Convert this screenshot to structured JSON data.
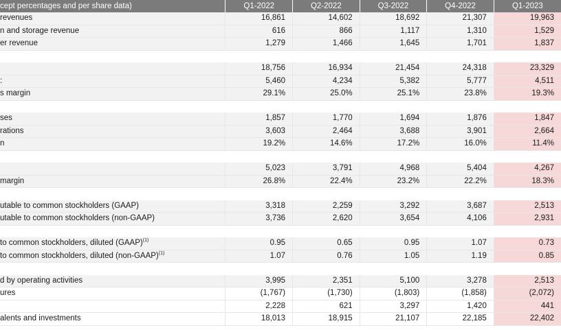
{
  "header": {
    "label": "cept percentages and per share data)",
    "columns": [
      "Q1-2022",
      "Q2-2022",
      "Q3-2022",
      "Q4-2022",
      "Q1-2023"
    ]
  },
  "rows": [
    {
      "type": "data",
      "shade": true,
      "label": " revenues",
      "values": [
        "16,861",
        "14,602",
        "18,692",
        "21,307",
        "19,963"
      ]
    },
    {
      "type": "data",
      "shade": true,
      "label": "n and storage revenue",
      "values": [
        "616",
        "866",
        "1,117",
        "1,310",
        "1,529"
      ]
    },
    {
      "type": "data",
      "shade": true,
      "label": "er revenue",
      "values": [
        "1,279",
        "1,466",
        "1,645",
        "1,701",
        "1,837"
      ]
    },
    {
      "type": "gap"
    },
    {
      "type": "data",
      "shade": true,
      "label": "",
      "values": [
        "18,756",
        "16,934",
        "21,454",
        "24,318",
        "23,329"
      ]
    },
    {
      "type": "data",
      "shade": true,
      "label": ":",
      "values": [
        "5,460",
        "4,234",
        "5,382",
        "5,777",
        "4,511"
      ]
    },
    {
      "type": "data",
      "shade": true,
      "label": "s margin",
      "values": [
        "29.1%",
        "25.0%",
        "25.1%",
        "23.8%",
        "19.3%"
      ]
    },
    {
      "type": "gap"
    },
    {
      "type": "data",
      "shade": true,
      "label": "ses",
      "values": [
        "1,857",
        "1,770",
        "1,694",
        "1,876",
        "1,847"
      ]
    },
    {
      "type": "data",
      "shade": true,
      "label": "rations",
      "values": [
        "3,603",
        "2,464",
        "3,688",
        "3,901",
        "2,664"
      ]
    },
    {
      "type": "data",
      "shade": true,
      "label": "n",
      "values": [
        "19.2%",
        "14.6%",
        "17.2%",
        "16.0%",
        "11.4%"
      ]
    },
    {
      "type": "gap"
    },
    {
      "type": "data",
      "shade": true,
      "label": "",
      "values": [
        "5,023",
        "3,791",
        "4,968",
        "5,404",
        "4,267"
      ]
    },
    {
      "type": "data",
      "shade": true,
      "label": " margin",
      "values": [
        "26.8%",
        "22.4%",
        "23.2%",
        "22.2%",
        "18.3%"
      ]
    },
    {
      "type": "gap"
    },
    {
      "type": "data",
      "shade": true,
      "label": "utable to common stockholders (GAAP)",
      "values": [
        "3,318",
        "2,259",
        "3,292",
        "3,687",
        "2,513"
      ]
    },
    {
      "type": "data",
      "shade": true,
      "label": "utable to common stockholders (non-GAAP)",
      "values": [
        "3,736",
        "2,620",
        "3,654",
        "4,106",
        "2,931"
      ]
    },
    {
      "type": "gap"
    },
    {
      "type": "data",
      "shade": true,
      "label": " to common stockholders, diluted (GAAP)",
      "sup": "(1)",
      "values": [
        "0.95",
        "0.65",
        "0.95",
        "1.07",
        "0.73"
      ]
    },
    {
      "type": "data",
      "shade": true,
      "label": " to common stockholders, diluted (non-GAAP)",
      "sup": "(1)",
      "values": [
        "1.07",
        "0.76",
        "1.05",
        "1.19",
        "0.85"
      ]
    },
    {
      "type": "gap"
    },
    {
      "type": "data",
      "shade": true,
      "label": "d by operating activities",
      "values": [
        "3,995",
        "2,351",
        "5,100",
        "3,278",
        "2,513"
      ]
    },
    {
      "type": "data",
      "shade": false,
      "label": "ures",
      "values": [
        "(1,767)",
        "(1,730)",
        "(1,803)",
        "(1,858)",
        "(2,072)"
      ]
    },
    {
      "type": "data",
      "shade": false,
      "label": "",
      "values": [
        "2,228",
        "621",
        "3,297",
        "1,420",
        "441"
      ]
    },
    {
      "type": "data",
      "shade": false,
      "label": "alents and investments",
      "values": [
        "18,013",
        "18,915",
        "21,107",
        "22,185",
        "22,402"
      ]
    }
  ]
}
